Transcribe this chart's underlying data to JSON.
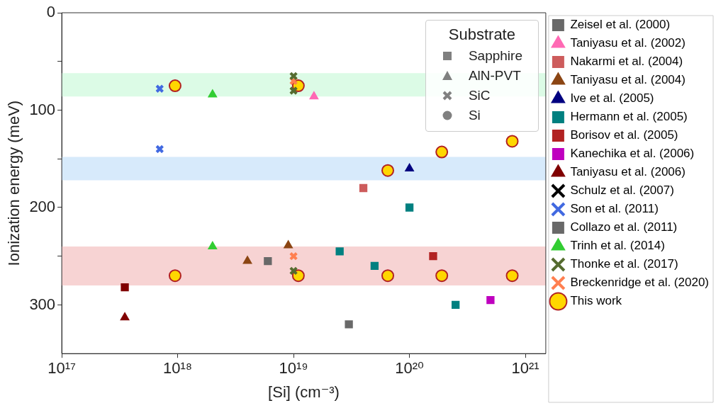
{
  "chart_data": {
    "type": "scatter",
    "xlabel": "[Si] (cm⁻³)",
    "ylabel": "Ionization energy (meV)",
    "legend_title": "Substrate",
    "annotations": [
      "Sapphire",
      "AlN-PVT",
      "SiC",
      "Si"
    ],
    "log": "x",
    "legend": "right",
    "grid": false,
    "xlim": [
      1e+17,
      1.5e+21
    ],
    "xticks": [
      {
        "value": 1e+17,
        "label": "10¹⁷"
      },
      {
        "value": 1e+18,
        "label": "10¹⁸"
      },
      {
        "value": 1e+19,
        "label": "10¹⁹"
      },
      {
        "value": 1e+20,
        "label": "10²⁰"
      },
      {
        "value": 1e+21,
        "label": "10²¹"
      }
    ],
    "ylim": [
      350,
      0
    ],
    "yticks": [
      0,
      {
        "value": 50,
        "label": null
      },
      100,
      {
        "value": 150,
        "label": null
      },
      200,
      {
        "value": 250,
        "label": null
      },
      300
    ],
    "bands": [
      {
        "axis": "y",
        "from": 62,
        "to": 86,
        "color": "#dcfbe6"
      },
      {
        "axis": "y",
        "from": 148,
        "to": 172,
        "color": "#d7eafb"
      },
      {
        "axis": "y",
        "from": 240,
        "to": 280,
        "color": "#f7d3d3"
      }
    ],
    "series": [
      {
        "name": "Zeisel et al. (2000)",
        "color": "#696969",
        "marker": "square",
        "x": [
          3e+19
        ],
        "values": [
          320
        ]
      },
      {
        "name": "Taniyasu et al. (2002)",
        "color": "#ff69b4",
        "marker": "triangle",
        "x": [
          1.5e+19
        ],
        "values": [
          86
        ]
      },
      {
        "name": "Nakarmi et al. (2004)",
        "color": "#cd5c5c",
        "marker": "square",
        "x": [
          4e+19
        ],
        "values": [
          180
        ]
      },
      {
        "name": "Taniyasu et al. (2004)",
        "color": "#8b4513",
        "marker": "triangle",
        "x": [
          4e+18,
          9e+18
        ],
        "values": [
          255,
          239
        ]
      },
      {
        "name": "Ive et al. (2005)",
        "color": "#000080",
        "marker": "triangle",
        "x": [
          1e+20
        ],
        "values": [
          160
        ]
      },
      {
        "name": "Hermann et al. (2005)",
        "color": "#008080",
        "marker": "square",
        "x": [
          2.5e+19,
          5e+19,
          1e+20,
          2.5e+20
        ],
        "values": [
          245,
          260,
          200,
          300
        ]
      },
      {
        "name": "Borisov et al. (2005)",
        "color": "#b22222",
        "marker": "square",
        "x": [
          1.6e+20
        ],
        "values": [
          250
        ]
      },
      {
        "name": "Kanechika et al. (2006)",
        "color": "#bf00bf",
        "marker": "square",
        "x": [
          5e+20
        ],
        "values": [
          295
        ]
      },
      {
        "name": "Taniyasu et al. (2006)",
        "color": "#800000",
        "marker": "triangle",
        "x": [
          3.5e+17
        ],
        "values": [
          313
        ]
      },
      {
        "name": "Schulz et al. (2007)",
        "color": "#000000",
        "marker": "cross"
      },
      {
        "name": "Son et al. (2011)",
        "color": "#4169e1",
        "marker": "cross",
        "x": [
          7e+17,
          7e+17
        ],
        "values": [
          78,
          140
        ]
      },
      {
        "name": "Collazo et al. (2011)",
        "color": "#696969",
        "marker": "square",
        "x": [
          6e+18
        ],
        "values": [
          255
        ]
      },
      {
        "name": "Trinh et al. (2014)",
        "color": "#32cd32",
        "marker": "triangle",
        "x": [
          2e+18,
          2e+18
        ],
        "values": [
          84,
          240
        ]
      },
      {
        "name": "Thonke et al. (2017)",
        "color": "#556b2f",
        "marker": "cross",
        "x": [
          1e+19,
          1e+19,
          1e+19
        ],
        "values": [
          65,
          80,
          265
        ]
      },
      {
        "name": "Breckenridge et al. (2020)",
        "color": "#ff7f50",
        "marker": "cross",
        "x": [
          1e+19,
          1e+19
        ],
        "values": [
          70,
          250
        ]
      },
      {
        "name": "This work",
        "color": "#ffd700",
        "marker": "circle",
        "x": [
          9.5e+17,
          1.1e+19,
          6.5e+19,
          1.9e+20,
          7.7e+20,
          9.5e+17,
          1.1e+19,
          6.5e+19,
          1.9e+20,
          7.7e+20
        ],
        "values": [
          75,
          75,
          162,
          143,
          132,
          270,
          270,
          270,
          270,
          270
        ]
      },
      {
        "color": "#800000",
        "marker": "square",
        "x": [
          3.5e+17
        ],
        "values": [
          282
        ]
      }
    ]
  }
}
